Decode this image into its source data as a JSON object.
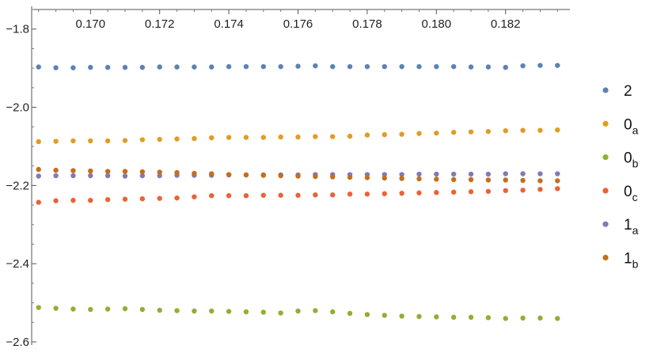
{
  "chart_data": {
    "type": "scatter",
    "xlim": [
      0.1683,
      0.1837
    ],
    "ylim": [
      -2.6,
      -1.75
    ],
    "x_ticks": [
      {
        "value": 0.17,
        "label": "0.170"
      },
      {
        "value": 0.172,
        "label": "0.172"
      },
      {
        "value": 0.174,
        "label": "0.174"
      },
      {
        "value": 0.176,
        "label": "0.176"
      },
      {
        "value": 0.178,
        "label": "0.178"
      },
      {
        "value": 0.18,
        "label": "0.180"
      },
      {
        "value": 0.182,
        "label": "0.182"
      }
    ],
    "y_ticks": [
      {
        "value": -1.8,
        "label": "−1.8"
      },
      {
        "value": -2.0,
        "label": "−2.0"
      },
      {
        "value": -2.2,
        "label": "−2.2"
      },
      {
        "value": -2.4,
        "label": "−2.4"
      },
      {
        "value": -2.6,
        "label": "−2.6"
      }
    ],
    "x": [
      0.1685,
      0.169,
      0.1695,
      0.17,
      0.1705,
      0.171,
      0.1715,
      0.172,
      0.1725,
      0.173,
      0.1735,
      0.174,
      0.1745,
      0.175,
      0.1755,
      0.176,
      0.1765,
      0.177,
      0.1775,
      0.178,
      0.1785,
      0.179,
      0.1795,
      0.18,
      0.1805,
      0.181,
      0.1815,
      0.182,
      0.1825,
      0.183,
      0.1835
    ],
    "series": [
      {
        "name": "2",
        "legend_main": "2",
        "legend_sub": "",
        "color": "#5e81b5",
        "values": [
          -1.897,
          -1.899,
          -1.899,
          -1.898,
          -1.898,
          -1.898,
          -1.898,
          -1.897,
          -1.897,
          -1.897,
          -1.897,
          -1.896,
          -1.896,
          -1.896,
          -1.896,
          -1.895,
          -1.894,
          -1.896,
          -1.896,
          -1.896,
          -1.896,
          -1.896,
          -1.896,
          -1.896,
          -1.896,
          -1.897,
          -1.897,
          -1.898,
          -1.894,
          -1.893,
          -1.893
        ]
      },
      {
        "name": "0a",
        "legend_main": "0",
        "legend_sub": "a",
        "color": "#e19c24",
        "values": [
          -2.088,
          -2.087,
          -2.086,
          -2.086,
          -2.086,
          -2.085,
          -2.083,
          -2.082,
          -2.081,
          -2.08,
          -2.078,
          -2.077,
          -2.077,
          -2.077,
          -2.076,
          -2.076,
          -2.075,
          -2.075,
          -2.074,
          -2.071,
          -2.07,
          -2.069,
          -2.067,
          -2.066,
          -2.064,
          -2.063,
          -2.062,
          -2.06,
          -2.059,
          -2.059,
          -2.058
        ]
      },
      {
        "name": "0b",
        "legend_main": "0",
        "legend_sub": "b",
        "color": "#8fb032",
        "values": [
          -2.512,
          -2.514,
          -2.516,
          -2.517,
          -2.516,
          -2.515,
          -2.517,
          -2.519,
          -2.52,
          -2.521,
          -2.521,
          -2.522,
          -2.523,
          -2.524,
          -2.526,
          -2.521,
          -2.52,
          -2.523,
          -2.527,
          -2.53,
          -2.532,
          -2.534,
          -2.535,
          -2.536,
          -2.537,
          -2.537,
          -2.538,
          -2.54,
          -2.539,
          -2.539,
          -2.54
        ]
      },
      {
        "name": "0c",
        "legend_main": "0",
        "legend_sub": "c",
        "color": "#eb6235",
        "values": [
          -2.243,
          -2.239,
          -2.238,
          -2.238,
          -2.236,
          -2.235,
          -2.234,
          -2.233,
          -2.232,
          -2.229,
          -2.226,
          -2.226,
          -2.226,
          -2.225,
          -2.225,
          -2.225,
          -2.224,
          -2.224,
          -2.222,
          -2.222,
          -2.221,
          -2.22,
          -2.219,
          -2.218,
          -2.217,
          -2.216,
          -2.215,
          -2.213,
          -2.212,
          -2.21,
          -2.208
        ]
      },
      {
        "name": "1a",
        "legend_main": "1",
        "legend_sub": "a",
        "color": "#8778b3",
        "values": [
          -2.176,
          -2.175,
          -2.175,
          -2.175,
          -2.175,
          -2.176,
          -2.175,
          -2.175,
          -2.174,
          -2.174,
          -2.174,
          -2.173,
          -2.173,
          -2.173,
          -2.173,
          -2.173,
          -2.172,
          -2.172,
          -2.172,
          -2.172,
          -2.172,
          -2.172,
          -2.171,
          -2.171,
          -2.171,
          -2.171,
          -2.171,
          -2.17,
          -2.17,
          -2.17,
          -2.17
        ]
      },
      {
        "name": "1b",
        "legend_main": "1",
        "legend_sub": "b",
        "color": "#c56e1a",
        "values": [
          -2.159,
          -2.161,
          -2.162,
          -2.163,
          -2.164,
          -2.164,
          -2.165,
          -2.166,
          -2.167,
          -2.169,
          -2.17,
          -2.172,
          -2.173,
          -2.174,
          -2.175,
          -2.176,
          -2.177,
          -2.178,
          -2.179,
          -2.18,
          -2.181,
          -2.182,
          -2.183,
          -2.184,
          -2.185,
          -2.185,
          -2.186,
          -2.186,
          -2.187,
          -2.188,
          -2.188
        ]
      }
    ],
    "grid": false,
    "legend_position": "right"
  }
}
